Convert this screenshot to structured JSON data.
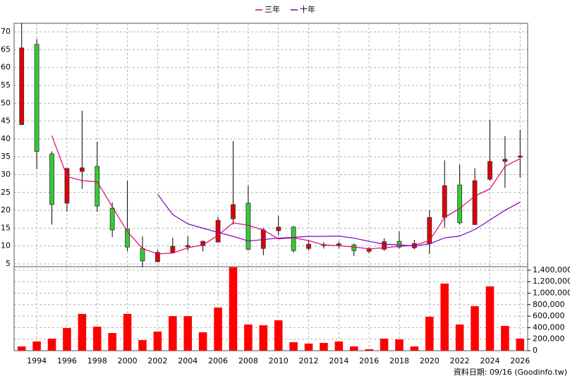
{
  "chart_data": {
    "type": "candlestick",
    "x": [
      1993,
      1994,
      1995,
      1996,
      1997,
      1998,
      1999,
      2000,
      2001,
      2002,
      2003,
      2004,
      2005,
      2006,
      2007,
      2008,
      2009,
      2010,
      2011,
      2012,
      2013,
      2014,
      2015,
      2016,
      2017,
      2018,
      2019,
      2020,
      2021,
      2022,
      2023,
      2024,
      2025,
      2026
    ],
    "open": [
      44,
      66.5,
      35.8,
      22,
      30.9,
      32.3,
      20.6,
      14.7,
      9.3,
      5.6,
      8.2,
      9.8,
      10.1,
      11.1,
      17.6,
      22,
      9.3,
      14.3,
      15.3,
      9.3,
      10.3,
      10.4,
      10.3,
      8.5,
      9.1,
      11.3,
      9.5,
      10.7,
      18,
      27.1,
      16,
      28.7,
      33.7,
      35
    ],
    "high": [
      72.4,
      68,
      36.5,
      32,
      47.9,
      39.2,
      22.2,
      28.3,
      12.7,
      8.9,
      12.3,
      12.7,
      11.5,
      18.2,
      39.4,
      26.9,
      15.1,
      18.4,
      15.6,
      11.7,
      11.1,
      11.2,
      10.7,
      9.7,
      12.1,
      14.1,
      11.7,
      20,
      34,
      32.8,
      31.8,
      45.4,
      40.8,
      42.5
    ],
    "low": [
      44,
      31.5,
      16,
      19.6,
      26,
      19.6,
      12.5,
      8.5,
      4,
      5.4,
      8,
      8.7,
      8.5,
      11,
      16,
      8.7,
      7.4,
      13,
      8.1,
      8.7,
      9.3,
      9.3,
      7.2,
      8,
      8.7,
      9.3,
      9.1,
      7.8,
      15.1,
      16,
      16,
      28.3,
      26.3,
      29.1
    ],
    "close": [
      65.5,
      36.5,
      21.6,
      31.7,
      31.9,
      21.2,
      14.5,
      9.7,
      5.8,
      8.2,
      9.9,
      10.1,
      11.3,
      17.2,
      21.6,
      9.1,
      14.5,
      15.3,
      8.7,
      10.5,
      10.4,
      10.6,
      8.7,
      9.3,
      11.2,
      9.7,
      10.7,
      18,
      26.9,
      16.5,
      28.3,
      33.7,
      34.3,
      35.2
    ],
    "up_color": "#e00000",
    "down_color": "#33cc33",
    "series": [
      {
        "name": "三年",
        "color": "#e0006f",
        "values": [
          null,
          null,
          40.9,
          29.5,
          28.3,
          28,
          21,
          14,
          9.3,
          7.8,
          8,
          9.5,
          10.3,
          13,
          16.5,
          15.8,
          14.5,
          12,
          12.3,
          11.5,
          10.3,
          10.1,
          9.7,
          9.2,
          9.5,
          9.9,
          10.2,
          11.5,
          18,
          20.5,
          24,
          26,
          32.3,
          34.5
        ]
      },
      {
        "name": "十年",
        "color": "#8000c0",
        "values": [
          null,
          null,
          null,
          null,
          null,
          null,
          null,
          null,
          null,
          24.5,
          18.8,
          16.2,
          15,
          13.8,
          12.7,
          11.4,
          11.8,
          12.2,
          12.4,
          12.7,
          12.7,
          12.8,
          12.2,
          11.3,
          10.5,
          10.3,
          10,
          10.6,
          12.3,
          12.8,
          14.6,
          17.3,
          20,
          22.3
        ]
      }
    ],
    "xlim": [
      1992.5,
      2026.5
    ],
    "xticks": [
      1994,
      1996,
      1998,
      2000,
      2002,
      2004,
      2006,
      2008,
      2010,
      2012,
      2014,
      2016,
      2018,
      2020,
      2022,
      2024,
      2026
    ],
    "ylim": [
      4.2,
      72.4
    ],
    "yticks": [
      5,
      10,
      15,
      20,
      25,
      30,
      35,
      40,
      45,
      50,
      55,
      60,
      65,
      70
    ],
    "grid": true,
    "volume": {
      "color": "#ff0000",
      "values": [
        74000,
        160000,
        209000,
        393000,
        639000,
        418000,
        307000,
        639000,
        184000,
        332000,
        600000,
        600000,
        320000,
        750000,
        1450000,
        455000,
        442000,
        528000,
        147000,
        123000,
        135000,
        160000,
        74000,
        25000,
        209000,
        196000,
        74000,
        590000,
        1167000,
        455000,
        774000,
        1118000,
        430000,
        209000
      ],
      "ylim": [
        0,
        1460000
      ],
      "yticks": [
        0,
        {
          "value": 200000,
          "label": "200,000"
        },
        {
          "value": 400000,
          "label": "400,000"
        },
        {
          "value": 600000,
          "label": "600,000"
        },
        {
          "value": 800000,
          "label": "800,000"
        },
        {
          "value": 1000000,
          "label": "1,000,000"
        },
        {
          "value": 1200000,
          "label": "1,200,000"
        },
        {
          "value": 1400000,
          "label": "1,400,000"
        }
      ]
    },
    "footnote": "資料日期: 09/16 (Goodinfo.tw)"
  }
}
